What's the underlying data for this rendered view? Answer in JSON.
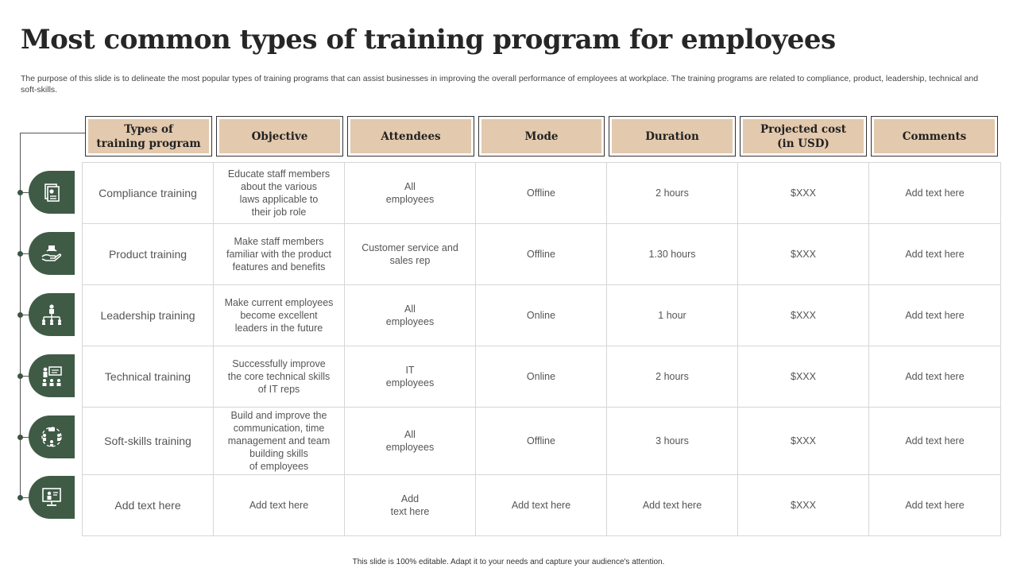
{
  "title": "Most common types of training program for employees",
  "description": "The purpose of this slide is to delineate the most popular types of training programs that can assist businesses in improving the overall performance of employees at workplace. The training programs are related to compliance, product, leadership, technical and soft-skills.",
  "headers": [
    "Types of\ntraining program",
    "Objective",
    "Attendees",
    "Mode",
    "Duration",
    "Projected cost\n(in USD)",
    "Comments"
  ],
  "rows": [
    {
      "icon": "document-icon",
      "type": "Compliance training",
      "objective": "Educate staff members\nabout the various\nlaws applicable to\ntheir job role",
      "attendees": "All\nemployees",
      "mode": "Offline",
      "duration": "2 hours",
      "cost": "$XXX",
      "comments": "Add text here"
    },
    {
      "icon": "product-hand-icon",
      "type": "Product training",
      "objective": "Make staff members\nfamiliar with the product\nfeatures and benefits",
      "attendees": "Customer service and\nsales rep",
      "mode": "Offline",
      "duration": "1.30 hours",
      "cost": "$XXX",
      "comments": "Add text here"
    },
    {
      "icon": "org-chart-icon",
      "type": "Leadership training",
      "objective": "Make current employees\nbecome excellent\nleaders in the future",
      "attendees": "All\nemployees",
      "mode": "Online",
      "duration": "1 hour",
      "cost": "$XXX",
      "comments": "Add text here"
    },
    {
      "icon": "presentation-icon",
      "type": "Technical training",
      "objective": "Successfully improve\nthe core technical skills\nof IT reps",
      "attendees": "IT\nemployees",
      "mode": "Online",
      "duration": "2 hours",
      "cost": "$XXX",
      "comments": "Add text here"
    },
    {
      "icon": "team-communication-icon",
      "type": "Soft-skills training",
      "objective": "Build and improve the\ncommunication, time\nmanagement and team\nbuilding skills\nof employees",
      "attendees": "All\nemployees",
      "mode": "Offline",
      "duration": "3 hours",
      "cost": "$XXX",
      "comments": "Add text here"
    },
    {
      "icon": "online-training-icon",
      "type": "Add text here",
      "objective": "Add text here",
      "attendees": "Add\ntext here",
      "mode": "Add text here",
      "duration": "Add text here",
      "cost": "$XXX",
      "comments": "Add text here"
    }
  ],
  "footer": "This slide is 100% editable. Adapt it to your needs and capture your audience's attention."
}
